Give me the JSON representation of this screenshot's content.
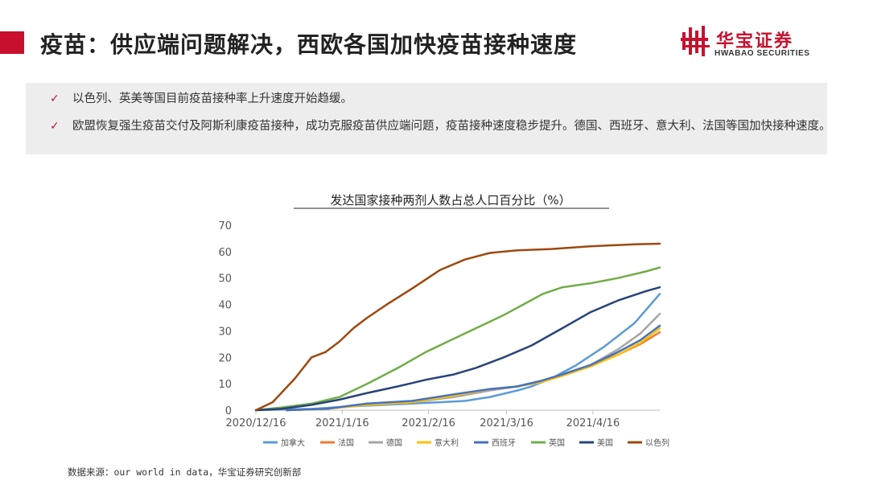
{
  "header": {
    "title": "疫苗：供应端问题解决，西欧各国加快疫苗接种速度",
    "logo_cn": "华宝证券",
    "logo_en": "HWABAO SECURITIES",
    "brand_color": "#c8102e"
  },
  "bullets": [
    {
      "icon": "check-icon",
      "text": "以色列、英美等国目前疫苗接种率上升速度开始趋缓。"
    },
    {
      "icon": "check-icon",
      "text": "欧盟恢复强生疫苗交付及阿斯利康疫苗接种，成功克服疫苗供应端问题，疫苗接种速度稳步提升。德国、西班牙、意大利、法国等国加快接种速度。"
    }
  ],
  "chart_data": {
    "type": "line",
    "title": "发达国家接种两剂人数占总人口百分比（%）",
    "xlabel": "",
    "ylabel": "",
    "x_ticks": [
      "2020/12/16",
      "2021/1/16",
      "2021/2/16",
      "2021/3/16",
      "2021/4/16"
    ],
    "x_range": [
      "2020/12/16",
      "2021/5/10"
    ],
    "y_ticks": [
      0,
      10,
      20,
      30,
      40,
      50,
      60,
      70
    ],
    "ylim": [
      0,
      70
    ],
    "grid": false,
    "legend_position": "bottom",
    "series": [
      {
        "name": "加拿大",
        "color": "#5b9bd5",
        "x": [
          "2020/12/16",
          "2021/1/5",
          "2021/1/20",
          "2021/2/10",
          "2021/2/20",
          "2021/3/1",
          "2021/3/10",
          "2021/3/20",
          "2021/3/25",
          "2021/4/1",
          "2021/4/10",
          "2021/4/20",
          "2021/5/1",
          "2021/5/10"
        ],
        "y": [
          0,
          0.5,
          1.5,
          2.5,
          3,
          3.5,
          5,
          7.5,
          9,
          12,
          17,
          24,
          33,
          44
        ]
      },
      {
        "name": "法国",
        "color": "#ed7d31",
        "x": [
          "2020/12/27",
          "2021/1/10",
          "2021/1/25",
          "2021/2/10",
          "2021/2/25",
          "2021/3/10",
          "2021/3/20",
          "2021/3/28",
          "2021/4/5",
          "2021/4/15",
          "2021/4/25",
          "2021/5/3",
          "2021/5/10"
        ],
        "y": [
          0,
          0.5,
          2,
          3,
          5,
          7.5,
          9,
          11,
          13.5,
          17,
          21,
          25,
          29.5
        ]
      },
      {
        "name": "德国",
        "color": "#a5a5a5",
        "x": [
          "2020/12/27",
          "2021/1/10",
          "2021/1/25",
          "2021/2/10",
          "2021/2/25",
          "2021/3/10",
          "2021/3/20",
          "2021/3/28",
          "2021/4/5",
          "2021/4/15",
          "2021/4/25",
          "2021/5/3",
          "2021/5/10"
        ],
        "y": [
          0,
          0.5,
          2,
          3,
          5,
          7.5,
          9,
          11,
          13.5,
          17,
          23,
          29,
          36.5
        ]
      },
      {
        "name": "意大利",
        "color": "#ffc000",
        "x": [
          "2020/12/27",
          "2021/1/10",
          "2021/1/25",
          "2021/2/10",
          "2021/2/25",
          "2021/3/10",
          "2021/3/20",
          "2021/3/28",
          "2021/4/5",
          "2021/4/15",
          "2021/4/25",
          "2021/5/3",
          "2021/5/10"
        ],
        "y": [
          0,
          0.5,
          2,
          3,
          5.5,
          8,
          9,
          10.5,
          13,
          16.5,
          21,
          25.5,
          31
        ]
      },
      {
        "name": "西班牙",
        "color": "#4472c4",
        "x": [
          "2020/12/27",
          "2021/1/10",
          "2021/1/25",
          "2021/2/10",
          "2021/2/25",
          "2021/3/10",
          "2021/3/20",
          "2021/3/28",
          "2021/4/5",
          "2021/4/15",
          "2021/4/25",
          "2021/5/3",
          "2021/5/10"
        ],
        "y": [
          0,
          0.5,
          2.5,
          3.5,
          6,
          8,
          9,
          11,
          13.5,
          17,
          22,
          26.5,
          32
        ]
      },
      {
        "name": "英国",
        "color": "#70ad47",
        "x": [
          "2020/12/16",
          "2020/12/25",
          "2021/1/5",
          "2021/1/15",
          "2021/1/25",
          "2021/2/5",
          "2021/2/15",
          "2021/2/25",
          "2021/3/5",
          "2021/3/15",
          "2021/3/22",
          "2021/3/29",
          "2021/4/5",
          "2021/4/15",
          "2021/4/25",
          "2021/5/5",
          "2021/5/10"
        ],
        "y": [
          0,
          1,
          2.5,
          5,
          10,
          16,
          22,
          27,
          31,
          36,
          40,
          44,
          46.5,
          48,
          50,
          52.5,
          54
        ]
      },
      {
        "name": "美国",
        "color": "#264478",
        "x": [
          "2020/12/16",
          "2020/12/25",
          "2021/1/5",
          "2021/1/15",
          "2021/1/25",
          "2021/2/5",
          "2021/2/15",
          "2021/2/25",
          "2021/3/5",
          "2021/3/15",
          "2021/3/25",
          "2021/4/5",
          "2021/4/15",
          "2021/4/25",
          "2021/5/5",
          "2021/5/10"
        ],
        "y": [
          0,
          0.5,
          2,
          4,
          6.5,
          9,
          11.5,
          13.5,
          16,
          20,
          24.5,
          31,
          37,
          41.5,
          45,
          46.5
        ]
      },
      {
        "name": "以色列",
        "color": "#9e480e",
        "x": [
          "2020/12/16",
          "2020/12/22",
          "2020/12/30",
          "2021/1/5",
          "2021/1/10",
          "2021/1/15",
          "2021/1/20",
          "2021/1/25",
          "2021/2/1",
          "2021/2/10",
          "2021/2/20",
          "2021/3/1",
          "2021/3/10",
          "2021/3/20",
          "2021/4/1",
          "2021/4/15",
          "2021/5/1",
          "2021/5/10"
        ],
        "y": [
          0,
          3,
          12,
          20,
          22,
          26,
          31,
          35,
          40,
          46,
          53,
          57,
          59.5,
          60.5,
          61,
          62,
          62.8,
          63
        ]
      }
    ]
  },
  "source": "数据来源：our world in data，华宝证券研究创新部"
}
